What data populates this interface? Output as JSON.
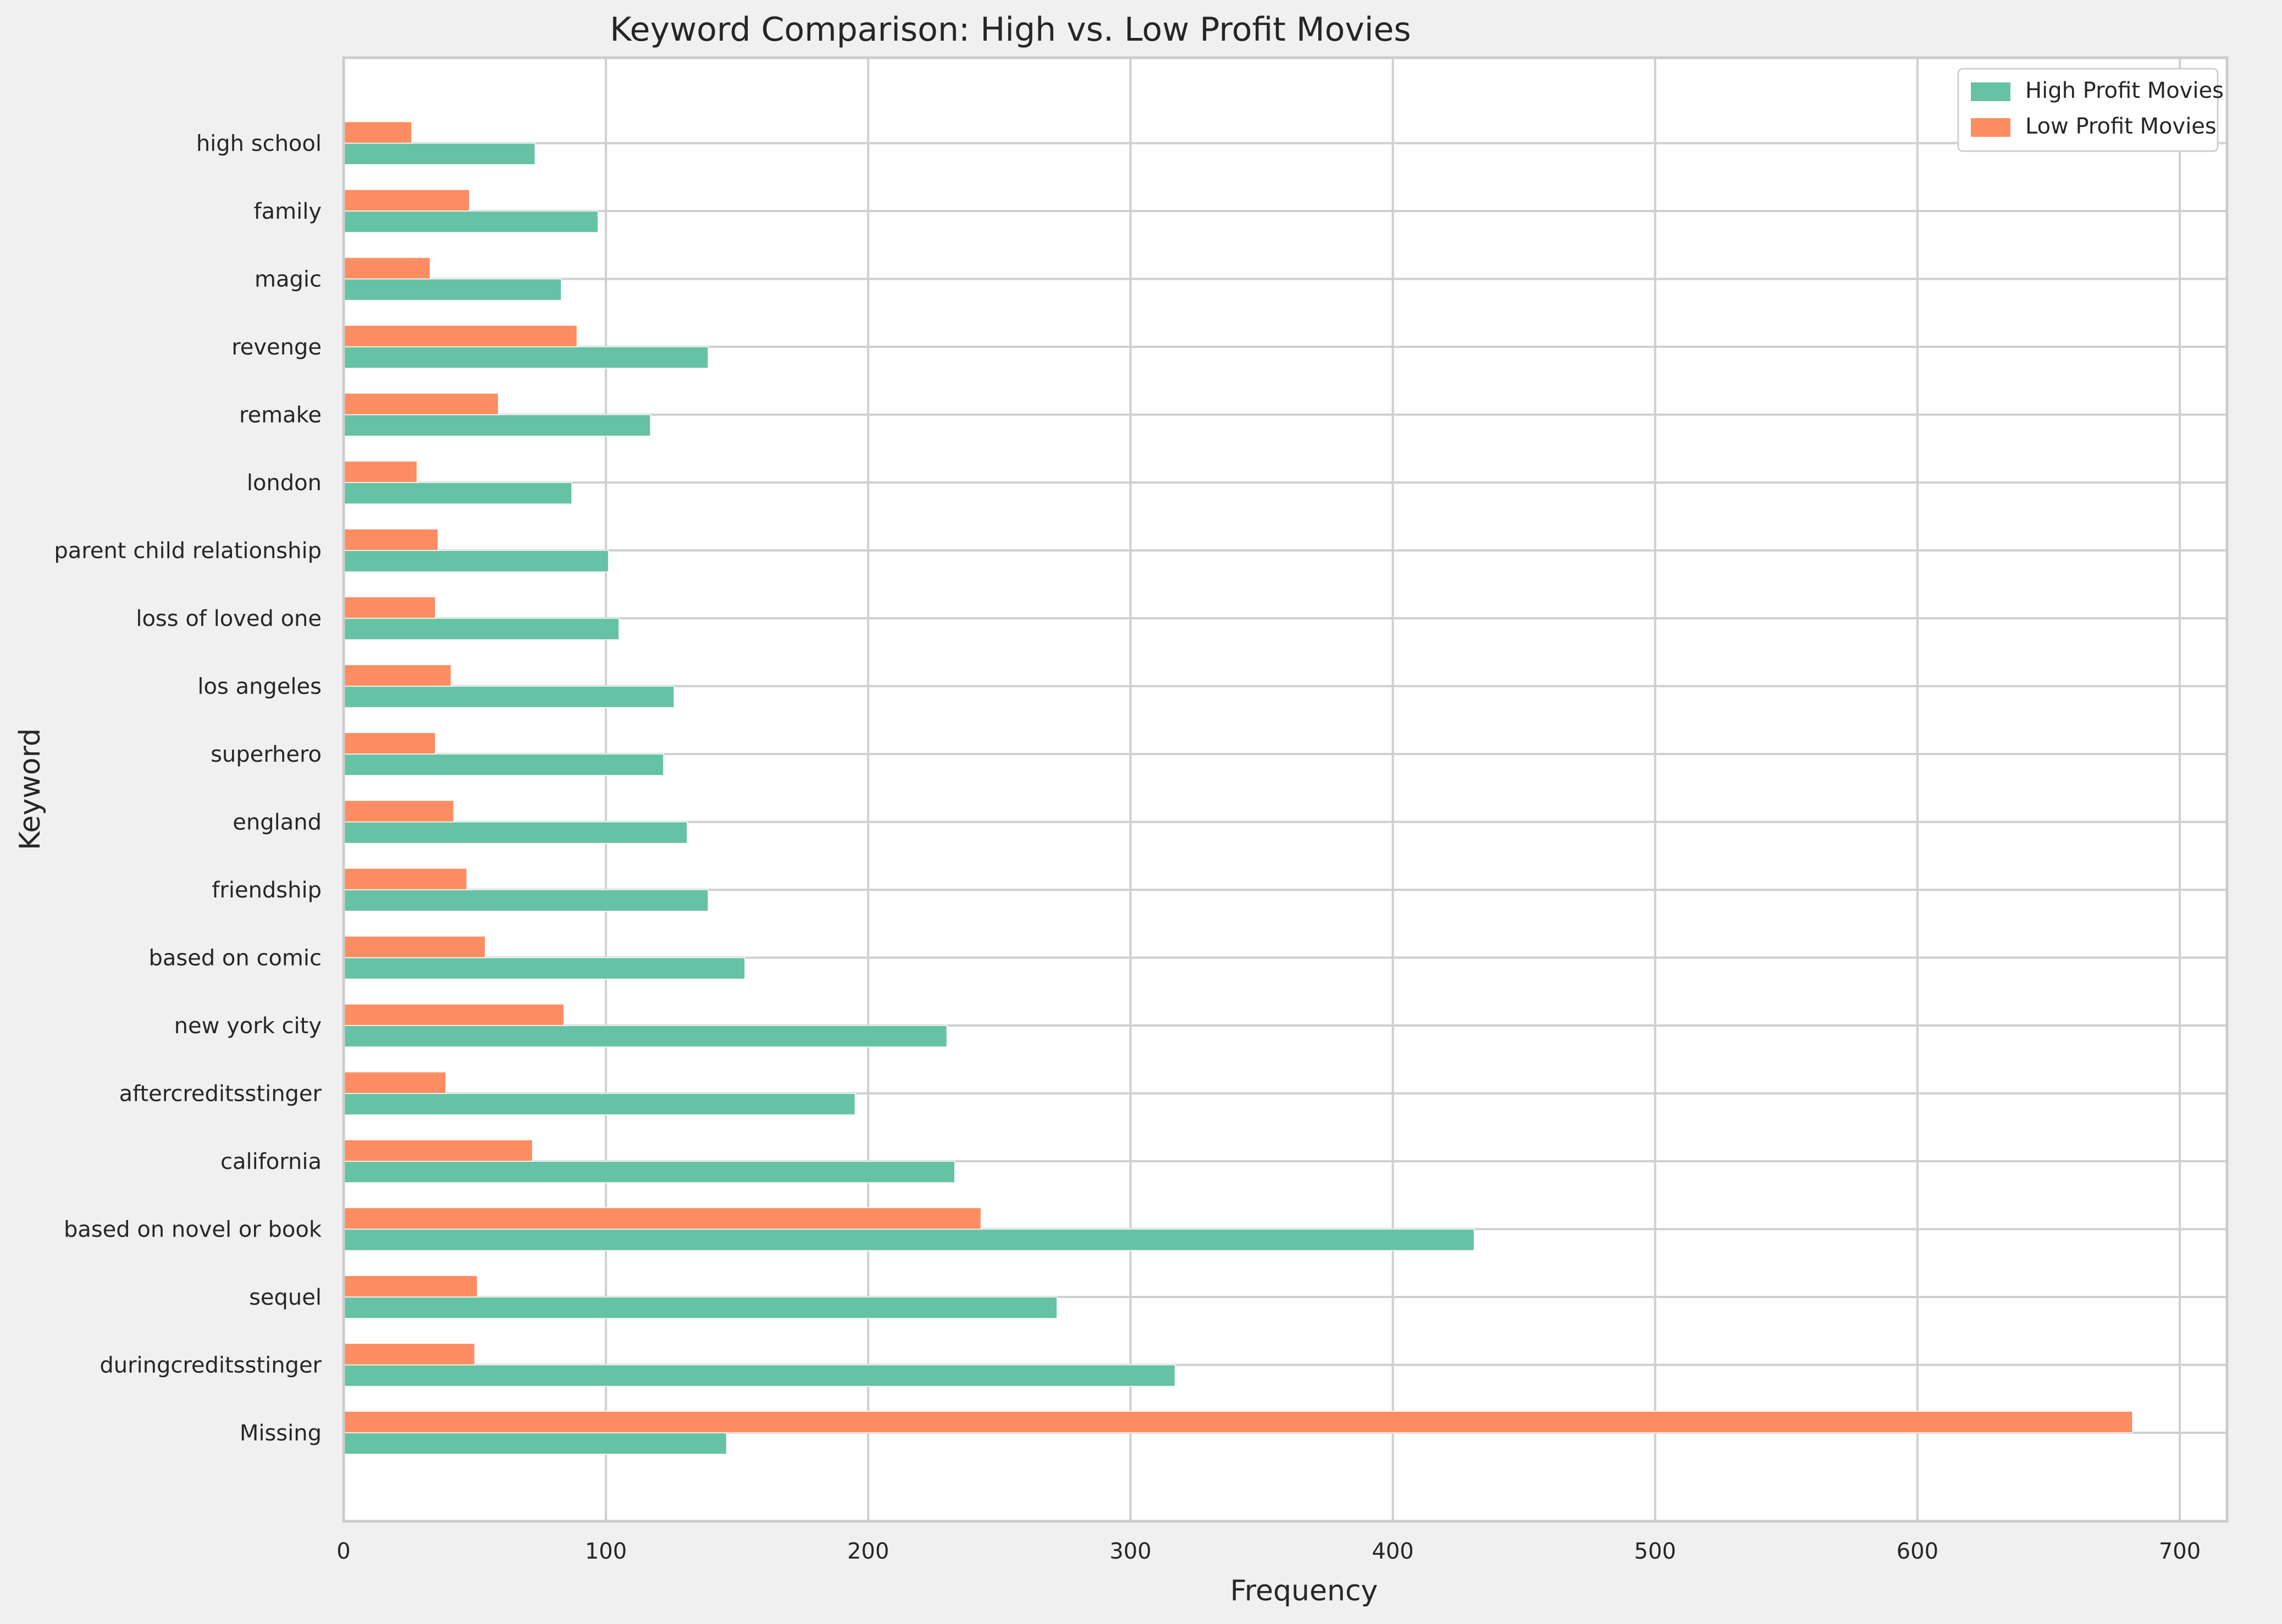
{
  "chart_data": {
    "type": "bar",
    "orientation": "horizontal",
    "title": "Keyword Comparison: High vs. Low Profit Movies",
    "xlabel": "Frequency",
    "ylabel": "Keyword",
    "xlim": [
      0,
      715
    ],
    "xticks": [
      0,
      100,
      200,
      300,
      400,
      500,
      600,
      700
    ],
    "grid": true,
    "legend_position": "top-right",
    "categories": [
      "Missing",
      "duringcreditsstinger",
      "sequel",
      "based on novel or book",
      "california",
      "aftercreditsstinger",
      "new york city",
      "based on comic",
      "friendship",
      "england",
      "superhero",
      "los angeles",
      "loss of loved one",
      "parent child relationship",
      "london",
      "remake",
      "revenge",
      "magic",
      "family",
      "high school"
    ],
    "series": [
      {
        "name": "High Profit Movies",
        "color": "#66c2a5",
        "values": [
          146,
          317,
          272,
          431,
          233,
          195,
          230,
          153,
          139,
          131,
          122,
          126,
          105,
          101,
          87,
          117,
          139,
          83,
          97,
          73
        ]
      },
      {
        "name": "Low Profit Movies",
        "color": "#fc8d62",
        "values": [
          682,
          50,
          51,
          243,
          72,
          39,
          84,
          54,
          47,
          42,
          35,
          41,
          35,
          36,
          28,
          59,
          89,
          33,
          48,
          26
        ]
      }
    ]
  }
}
